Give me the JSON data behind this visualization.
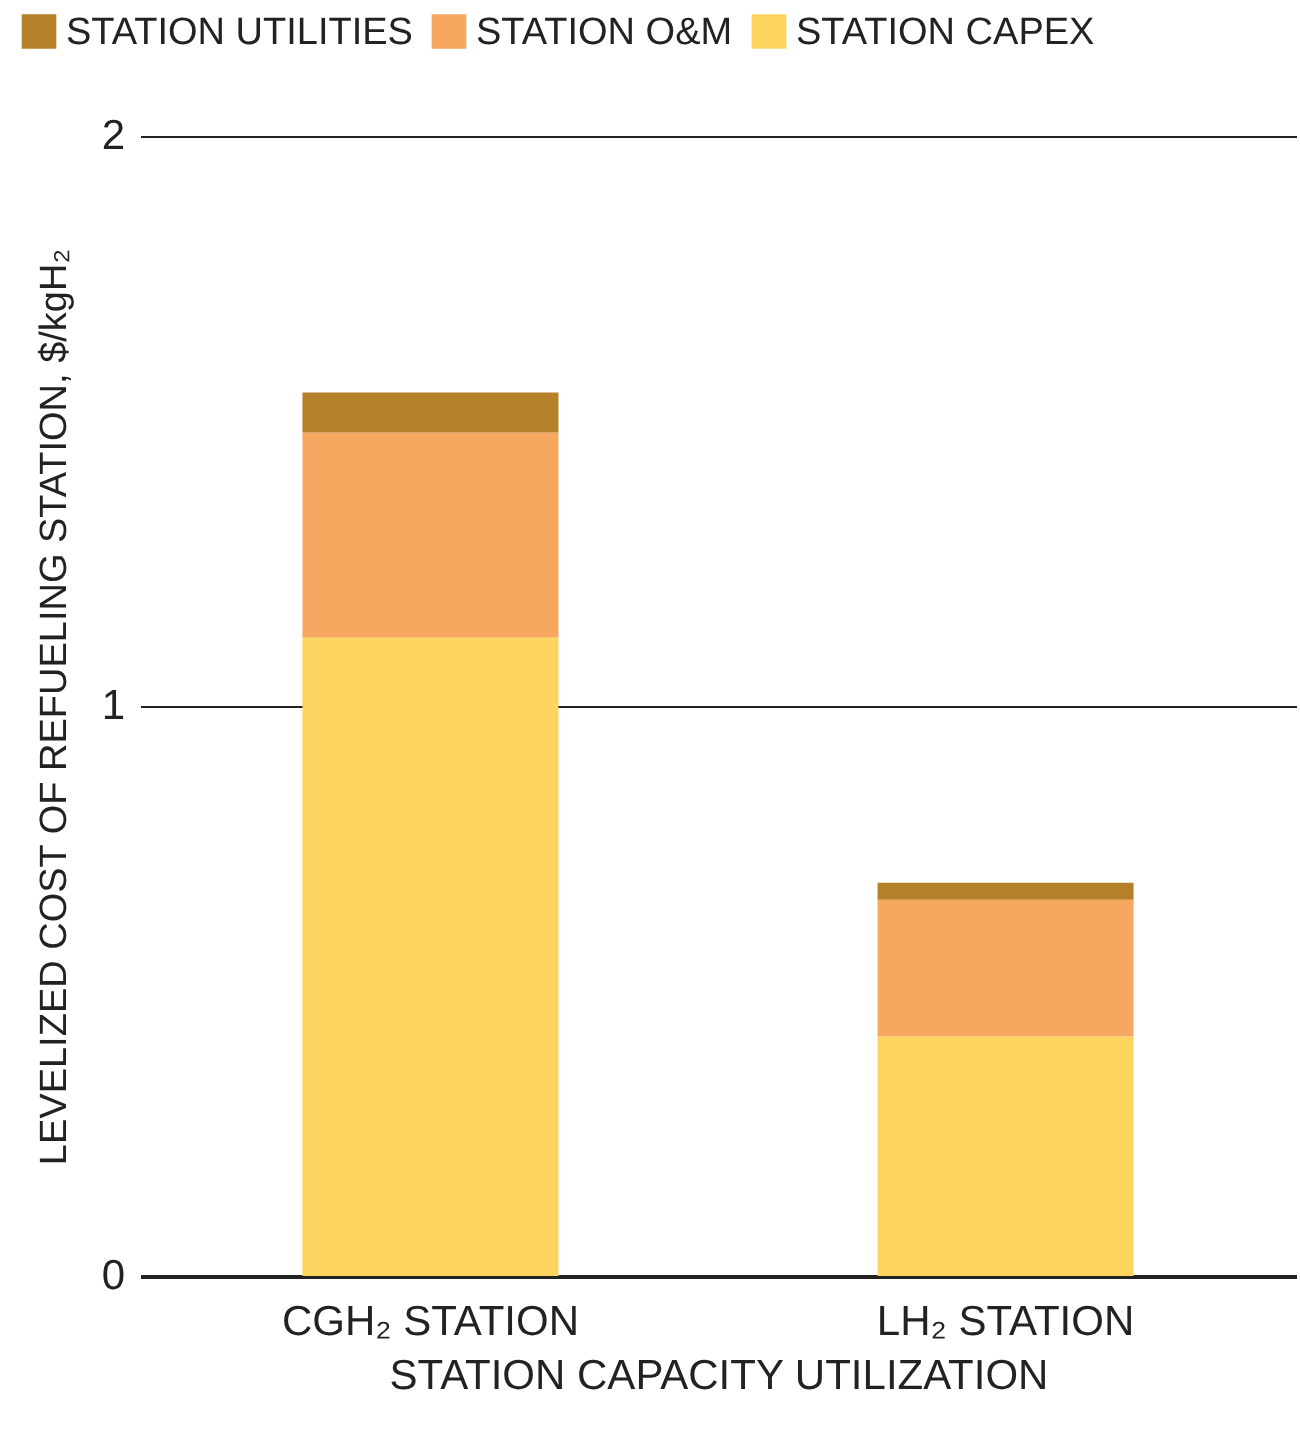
{
  "chart_data": {
    "type": "bar",
    "stacked": true,
    "xlabel": "STATION CAPACITY UTILIZATION",
    "ylabel": "LEVELIZED COST OF REFUELING STATION, $/kgH₂",
    "categories": [
      "CGH₂ STATION",
      "LH₂ STATION"
    ],
    "series": [
      {
        "name": "STATION CAPEX",
        "color": "#fcd45e",
        "values": [
          1.12,
          0.42
        ]
      },
      {
        "name": "STATION O&M",
        "color": "#f7a760",
        "values": [
          0.36,
          0.24
        ]
      },
      {
        "name": "STATION UTILITIES",
        "color": "#b5802a",
        "values": [
          0.07,
          0.03
        ]
      }
    ],
    "ylim": [
      0,
      2
    ],
    "yticks": [
      0,
      1,
      2
    ],
    "grid": "y",
    "legend": "top left"
  }
}
